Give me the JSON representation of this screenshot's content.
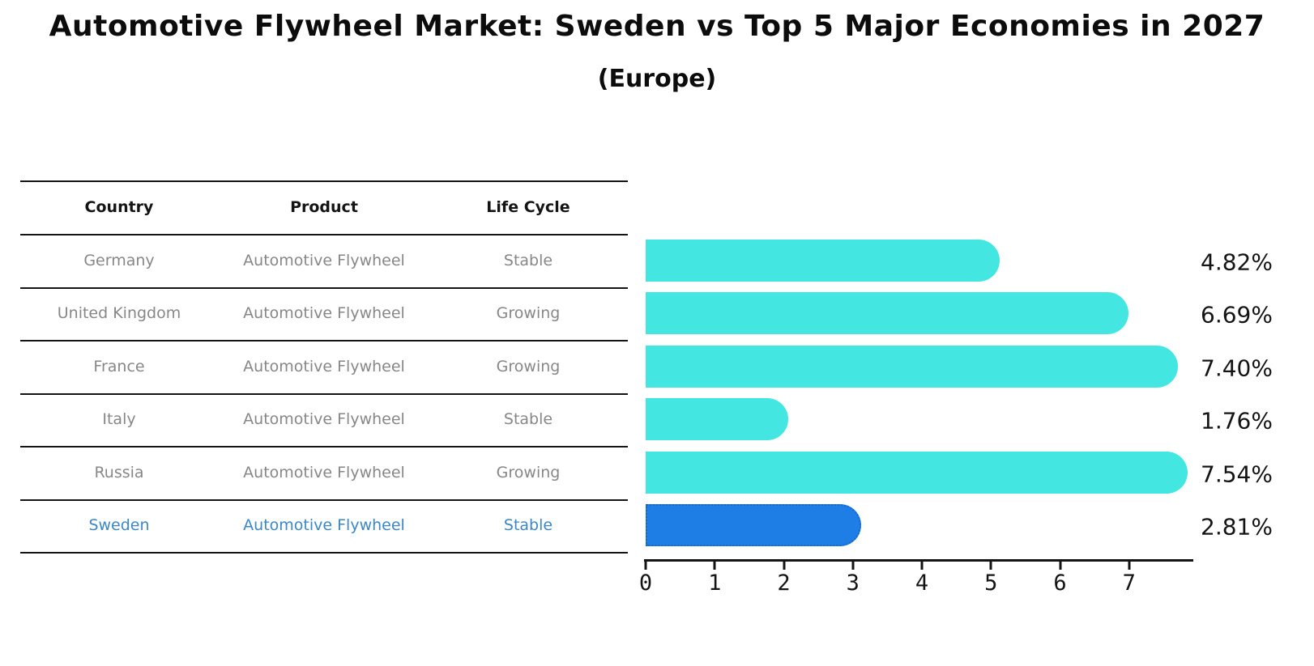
{
  "header": {
    "title": "Automotive Flywheel Market: Sweden vs Top 5 Major Economies in 2027",
    "subtitle": "(Europe)"
  },
  "table": {
    "headers": {
      "country": "Country",
      "product": "Product",
      "life_cycle": "Life Cycle"
    },
    "rows": [
      {
        "country": "Germany",
        "product": "Automotive Flywheel",
        "life_cycle": "Stable",
        "highlighted": false
      },
      {
        "country": "United Kingdom",
        "product": "Automotive Flywheel",
        "life_cycle": "Growing",
        "highlighted": false
      },
      {
        "country": "France",
        "product": "Automotive Flywheel",
        "life_cycle": "Growing",
        "highlighted": false
      },
      {
        "country": "Italy",
        "product": "Automotive Flywheel",
        "life_cycle": "Stable",
        "highlighted": false
      },
      {
        "country": "Russia",
        "product": "Automotive Flywheel",
        "life_cycle": "Growing",
        "highlighted": false
      },
      {
        "country": "Sweden",
        "product": "Automotive Flywheel",
        "life_cycle": "Stable",
        "highlighted": true
      }
    ]
  },
  "chart_data": {
    "type": "bar",
    "orientation": "horizontal",
    "title": "Automotive Flywheel Market: Sweden vs Top 5 Major Economies in 2027",
    "subtitle": "(Europe)",
    "categories": [
      "Germany",
      "United Kingdom",
      "France",
      "Italy",
      "Russia",
      "Sweden"
    ],
    "values": [
      4.82,
      6.69,
      7.4,
      1.76,
      7.54,
      2.81
    ],
    "value_labels": [
      "4.82%",
      "6.69%",
      "7.40%",
      "1.76%",
      "7.54%",
      "2.81%"
    ],
    "x_ticks": [
      "0",
      "1",
      "2",
      "3",
      "4",
      "5",
      "6",
      "7"
    ],
    "xlim": [
      0,
      7.93
    ],
    "unit": "percent of market (CAGR shown as %)",
    "highlight_category": "Sweden",
    "grid": false,
    "legend": false
  },
  "colors": {
    "bar": "#43E6E0",
    "highlight_bar": "#1F7EE6",
    "highlight_bar_border": "#1566CF",
    "highlight_text": "#3B87C9",
    "row_text": "#878787",
    "header_text": "#141414",
    "axis": "#141414",
    "background": "#ffffff"
  }
}
